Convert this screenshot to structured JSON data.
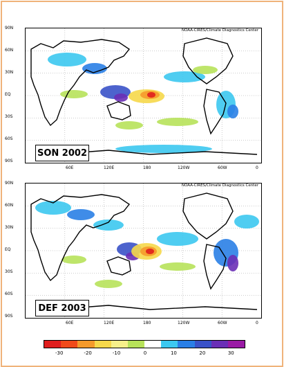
{
  "panels": [
    {
      "label": "SON 2002",
      "credit": "NOAA-CIRES/Climate Diagnostics Center"
    },
    {
      "label": "DEF 2003",
      "credit": "NOAA-CIRES/Climate Diagnostics Center"
    }
  ],
  "lat_labels": [
    "90N",
    "60N",
    "30N",
    "EQ",
    "30S",
    "60S",
    "90S"
  ],
  "lon_labels": [
    "60E",
    "120E",
    "180",
    "120W",
    "60W",
    "0"
  ],
  "colorbar": {
    "colors": [
      "#e01e1e",
      "#f04a1a",
      "#f59a2b",
      "#f6d84a",
      "#f7f08a",
      "#b7e25a",
      "#ffffff",
      "#3cc8f0",
      "#2a7fe6",
      "#3a52c8",
      "#6a2fb6",
      "#9a1aa5"
    ],
    "ticks": [
      "-30",
      "-20",
      "-10",
      "0",
      "10",
      "20",
      "30"
    ]
  }
}
